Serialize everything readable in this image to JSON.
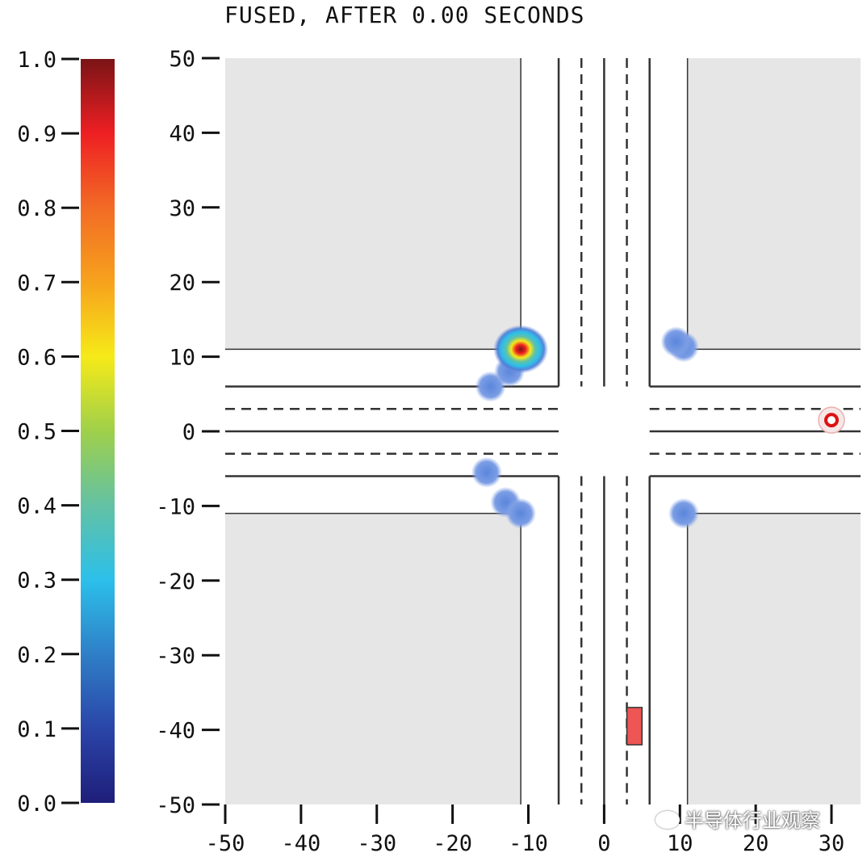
{
  "chart_data": {
    "type": "heatmap",
    "title": "FUSED, AFTER 0.00 SECONDS",
    "xlim": [
      -50,
      30
    ],
    "ylim": [
      -50,
      50
    ],
    "x_ticks": [
      "-50",
      "-40",
      "-30",
      "-20",
      "-10",
      "0",
      "10",
      "20",
      "30"
    ],
    "y_ticks": [
      "50",
      "40",
      "30",
      "20",
      "10",
      "0",
      "-10",
      "-20",
      "-30",
      "-40",
      "-50"
    ],
    "colorbar": {
      "range": [
        0.0,
        1.0
      ],
      "ticks": [
        "1.0",
        "0.9",
        "0.8",
        "0.7",
        "0.6",
        "0.5",
        "0.4",
        "0.3",
        "0.2",
        "0.1",
        "0.0"
      ],
      "colormap": [
        "#1f1e7a",
        "#2a45a8",
        "#2f7fc7",
        "#2cc0ea",
        "#63c1a4",
        "#9fd04a",
        "#f6ea18",
        "#f7a21d",
        "#f26b25",
        "#ee1f23",
        "#7a1416"
      ]
    },
    "road": {
      "background_color": "#e6e6e6",
      "road_color": "#ffffff",
      "road_edges": 6,
      "curbs": 11,
      "lane_dividers": 3,
      "center_line": 0
    },
    "hotspots": [
      {
        "x": -11,
        "y": 11,
        "peak": 0.95
      },
      {
        "x": -12.5,
        "y": 8,
        "peak": 0.3
      },
      {
        "x": -15,
        "y": 6,
        "peak": 0.25
      },
      {
        "x": 9.5,
        "y": 12,
        "peak": 0.22
      },
      {
        "x": 10.5,
        "y": 11.3,
        "peak": 0.2
      },
      {
        "x": -15.5,
        "y": -5.5,
        "peak": 0.25
      },
      {
        "x": -13,
        "y": -9.5,
        "peak": 0.25
      },
      {
        "x": -11,
        "y": -11,
        "peak": 0.25
      },
      {
        "x": 10.5,
        "y": -11,
        "peak": 0.22
      }
    ],
    "ego_vehicle": {
      "x": 4,
      "y": -39.5,
      "width": 2,
      "length": 5,
      "color": "#ee5555"
    },
    "target_marker": {
      "x": 30,
      "y": 1.5,
      "color": "#dd1111"
    }
  },
  "watermark": "半导体行业观察"
}
